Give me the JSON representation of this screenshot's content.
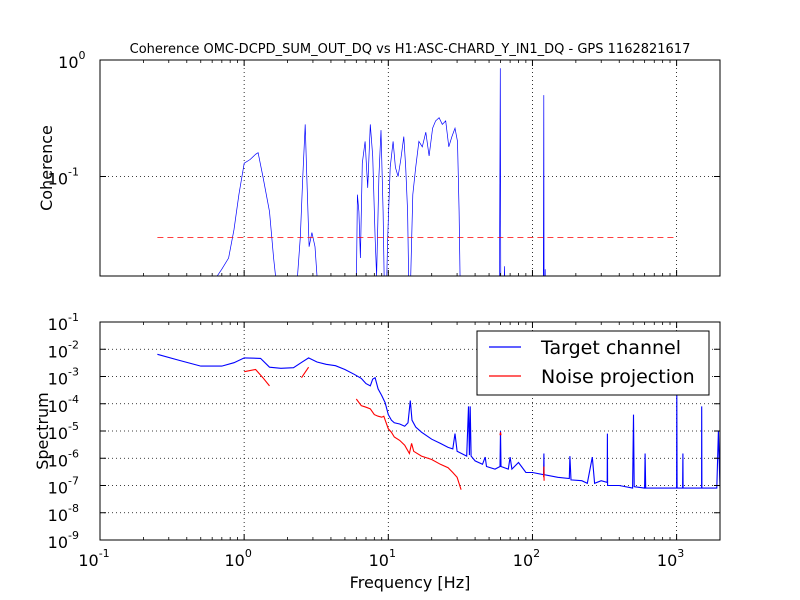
{
  "colors": {
    "target": "#0000ff",
    "projection": "#ff0000",
    "threshold": "#ff0000",
    "grid": "#000000"
  },
  "chart_data": [
    {
      "type": "line",
      "title": "Coherence OMC-DCPD_SUM_OUT_DQ vs H1:ASC-CHARD_Y_IN1_DQ - GPS 1162821617",
      "xscale": "log",
      "yscale": "log",
      "xlim": [
        0.1,
        2000
      ],
      "ylim": [
        0.014,
        1
      ],
      "ylabel": "Coherence",
      "xlabel": "",
      "grid": true,
      "yticks": [
        {
          "value": 0.1,
          "mant": "10",
          "exp": "-1"
        },
        {
          "value": 1,
          "mant": "10",
          "exp": "0"
        }
      ],
      "series": [
        {
          "values_xy": [
            [
              0.6,
              0.01
            ],
            [
              0.65,
              0.014
            ],
            [
              0.7,
              0.016
            ],
            [
              0.78,
              0.02
            ],
            [
              0.85,
              0.035
            ],
            [
              0.92,
              0.07
            ],
            [
              1.0,
              0.13
            ],
            [
              1.1,
              0.14
            ],
            [
              1.2,
              0.155
            ],
            [
              1.25,
              0.16
            ],
            [
              1.35,
              0.1
            ],
            [
              1.5,
              0.05
            ],
            [
              1.6,
              0.02
            ],
            [
              1.7,
              0.01
            ],
            [
              2.3,
              0.01
            ],
            [
              2.45,
              0.03
            ],
            [
              2.55,
              0.1
            ],
            [
              2.65,
              0.28
            ],
            [
              2.72,
              0.1
            ],
            [
              2.82,
              0.025
            ],
            [
              2.95,
              0.033
            ],
            [
              3.1,
              0.025
            ],
            [
              3.2,
              0.014
            ],
            [
              3.3,
              0.01
            ],
            [
              6.0,
              0.01
            ],
            [
              6.1,
              0.07
            ],
            [
              6.25,
              0.05
            ],
            [
              6.4,
              0.02
            ],
            [
              6.6,
              0.13
            ],
            [
              6.9,
              0.2
            ],
            [
              7.2,
              0.08
            ],
            [
              7.5,
              0.28
            ],
            [
              7.8,
              0.15
            ],
            [
              8.1,
              0.03
            ],
            [
              8.3,
              0.014
            ],
            [
              8.6,
              0.1
            ],
            [
              8.9,
              0.25
            ],
            [
              9.2,
              0.05
            ],
            [
              9.4,
              0.01
            ],
            [
              9.7,
              0.01
            ],
            [
              9.9,
              0.03
            ],
            [
              10.3,
              0.12
            ],
            [
              10.8,
              0.2
            ],
            [
              11.2,
              0.12
            ],
            [
              11.7,
              0.1
            ],
            [
              12.2,
              0.14
            ],
            [
              12.8,
              0.22
            ],
            [
              13.2,
              0.12
            ],
            [
              13.6,
              0.05
            ],
            [
              13.9,
              0.01
            ],
            [
              14.2,
              0.01
            ],
            [
              14.8,
              0.07
            ],
            [
              15.5,
              0.12
            ],
            [
              16.3,
              0.2
            ],
            [
              17.2,
              0.18
            ],
            [
              18.2,
              0.24
            ],
            [
              19.2,
              0.15
            ],
            [
              20.3,
              0.26
            ],
            [
              21.3,
              0.3
            ],
            [
              22.5,
              0.32
            ],
            [
              23.7,
              0.28
            ],
            [
              25.0,
              0.3
            ],
            [
              26.3,
              0.18
            ],
            [
              27.6,
              0.22
            ],
            [
              29.0,
              0.26
            ],
            [
              30.2,
              0.2
            ],
            [
              31.0,
              0.05
            ],
            [
              31.6,
              0.01
            ],
            [
              59.0,
              0.01
            ],
            [
              59.8,
              0.85
            ],
            [
              60.3,
              0.01
            ],
            [
              63.5,
              0.01
            ],
            [
              64.0,
              0.017
            ],
            [
              64.5,
              0.01
            ],
            [
              119.0,
              0.01
            ],
            [
              119.8,
              0.5
            ],
            [
              120.4,
              0.01
            ],
            [
              122.0,
              0.01
            ],
            [
              122.5,
              0.016
            ],
            [
              123.0,
              0.01
            ]
          ]
        },
        {
          "style": "dashed",
          "values_xy": [
            [
              0.25,
              0.03
            ],
            [
              1000,
              0.03
            ]
          ]
        }
      ]
    },
    {
      "type": "line",
      "title": "",
      "xscale": "log",
      "yscale": "log",
      "xlim": [
        0.1,
        2000
      ],
      "ylim": [
        1e-09,
        0.1
      ],
      "xlabel": "Frequency [Hz]",
      "ylabel": "Spectrum",
      "grid": true,
      "legend_position": "top-right",
      "xticks": [
        {
          "value": 0.1,
          "mant": "10",
          "exp": "-1"
        },
        {
          "value": 1,
          "mant": "10",
          "exp": "0"
        },
        {
          "value": 10,
          "mant": "10",
          "exp": "1"
        },
        {
          "value": 100,
          "mant": "10",
          "exp": "2"
        },
        {
          "value": 1000,
          "mant": "10",
          "exp": "3"
        }
      ],
      "yticks": [
        {
          "value": 1e-09,
          "mant": "10",
          "exp": "-9"
        },
        {
          "value": 1e-08,
          "mant": "10",
          "exp": "-8"
        },
        {
          "value": 1e-07,
          "mant": "10",
          "exp": "-7"
        },
        {
          "value": 1e-06,
          "mant": "10",
          "exp": "-6"
        },
        {
          "value": 1e-05,
          "mant": "10",
          "exp": "-5"
        },
        {
          "value": 0.0001,
          "mant": "10",
          "exp": "-4"
        },
        {
          "value": 0.001,
          "mant": "10",
          "exp": "-3"
        },
        {
          "value": 0.01,
          "mant": "10",
          "exp": "-2"
        },
        {
          "value": 0.1,
          "mant": "10",
          "exp": "-1"
        }
      ],
      "series": [
        {
          "name": "Target channel",
          "values_xy": [
            [
              0.25,
              0.0065
            ],
            [
              0.35,
              0.004
            ],
            [
              0.5,
              0.0024
            ],
            [
              0.7,
              0.0024
            ],
            [
              0.85,
              0.0032
            ],
            [
              1.0,
              0.0048
            ],
            [
              1.3,
              0.0046
            ],
            [
              1.5,
              0.0022
            ],
            [
              1.8,
              0.002
            ],
            [
              2.2,
              0.0021
            ],
            [
              2.5,
              0.0033
            ],
            [
              2.8,
              0.0048
            ],
            [
              3.2,
              0.0034
            ],
            [
              3.7,
              0.0028
            ],
            [
              4.3,
              0.0025
            ],
            [
              5.0,
              0.0018
            ],
            [
              5.8,
              0.0012
            ],
            [
              6.5,
              0.00085
            ],
            [
              7.0,
              0.00055
            ],
            [
              7.5,
              0.00045
            ],
            [
              7.8,
              0.0008
            ],
            [
              8.1,
              0.0009
            ],
            [
              8.5,
              0.00035
            ],
            [
              9.0,
              0.0002
            ],
            [
              9.5,
              0.00011
            ],
            [
              10.0,
              4e-05
            ],
            [
              10.5,
              2.5e-05
            ],
            [
              11.0,
              2e-05
            ],
            [
              12.0,
              1.8e-05
            ],
            [
              13.0,
              1.5e-05
            ],
            [
              13.7,
              2e-05
            ],
            [
              14.2,
              0.00013
            ],
            [
              14.6,
              2.5e-05
            ],
            [
              15.5,
              1.4e-05
            ],
            [
              17.0,
              9e-06
            ],
            [
              20.0,
              5e-06
            ],
            [
              23.0,
              3.5e-06
            ],
            [
              26.0,
              2.5e-06
            ],
            [
              28.0,
              2.2e-06
            ],
            [
              29.0,
              8e-06
            ],
            [
              30.0,
              1.8e-06
            ],
            [
              33.0,
              1.4e-06
            ],
            [
              35.0,
              1.2e-06
            ],
            [
              36.0,
              8e-05
            ],
            [
              36.5,
              1.3e-06
            ],
            [
              37.0,
              8e-05
            ],
            [
              37.5,
              1.2e-06
            ],
            [
              40.0,
              8e-07
            ],
            [
              45.0,
              6e-07
            ],
            [
              47.0,
              1.1e-06
            ],
            [
              48.0,
              5e-07
            ],
            [
              55.0,
              4e-07
            ],
            [
              59.5,
              5e-07
            ],
            [
              60.0,
              1e-05
            ],
            [
              60.5,
              5e-07
            ],
            [
              68.0,
              4e-07
            ],
            [
              70.0,
              1.1e-06
            ],
            [
              72.0,
              4e-07
            ],
            [
              80.0,
              7e-07
            ],
            [
              90.0,
              3e-07
            ],
            [
              100.0,
              3e-07
            ],
            [
              119.5,
              2.5e-07
            ],
            [
              120.0,
              1.5e-06
            ],
            [
              120.5,
              2.5e-07
            ],
            [
              150.0,
              2e-07
            ],
            [
              180.0,
              1.8e-07
            ],
            [
              182.0,
              1.2e-06
            ],
            [
              185.0,
              1.6e-07
            ],
            [
              220.0,
              1.5e-07
            ],
            [
              240.0,
              1.2e-07
            ],
            [
              260.0,
              1.1e-06
            ],
            [
              270.0,
              1.2e-07
            ],
            [
              300.0,
              1.5e-07
            ],
            [
              330.0,
              1.3e-07
            ],
            [
              331.0,
              8e-06
            ],
            [
              332.0,
              1e-07
            ],
            [
              400.0,
              1e-07
            ],
            [
              495.0,
              8e-08
            ],
            [
              502.0,
              4e-05
            ],
            [
              508.0,
              9e-08
            ],
            [
              600.0,
              8e-08
            ],
            [
              605.0,
              1.5e-06
            ],
            [
              610.0,
              8e-08
            ],
            [
              800.0,
              8e-08
            ],
            [
              1000.0,
              8e-08
            ],
            [
              1003.0,
              0.0003
            ],
            [
              1008.0,
              8e-08
            ],
            [
              1100.0,
              8e-08
            ],
            [
              1105.0,
              1.5e-06
            ],
            [
              1110.0,
              8e-08
            ],
            [
              1300.0,
              8e-08
            ],
            [
              1490.0,
              8e-08
            ],
            [
              1494.0,
              8e-05
            ],
            [
              1498.0,
              8e-08
            ],
            [
              1600.0,
              8e-08
            ],
            [
              1900.0,
              8e-08
            ],
            [
              1950.0,
              1e-05
            ],
            [
              2000.0,
              8e-08
            ]
          ]
        },
        {
          "name": "Noise projection",
          "values_xy": [
            [
              1.0,
              0.0015
            ],
            [
              1.2,
              0.0018
            ],
            [
              1.35,
              0.0009
            ],
            [
              1.5,
              0.00045
            ],
            [
              2.5,
              0.0009
            ],
            [
              2.8,
              0.0022
            ],
            [
              6.0,
              0.00015
            ],
            [
              6.5,
              8.5e-05
            ],
            [
              7.0,
              7.5e-05
            ],
            [
              7.5,
              6.5e-05
            ],
            [
              8.0,
              4e-05
            ],
            [
              8.5,
              3.5e-05
            ],
            [
              9.0,
              3.2e-05
            ],
            [
              9.3,
              3.5e-05
            ],
            [
              10.0,
              1.2e-05
            ],
            [
              10.5,
              9e-06
            ],
            [
              11.0,
              6e-06
            ],
            [
              12.0,
              4.5e-06
            ],
            [
              13.0,
              3e-06
            ],
            [
              14.0,
              1.5e-06
            ],
            [
              14.5,
              3.5e-06
            ],
            [
              15.0,
              1.8e-06
            ],
            [
              17.0,
              1.2e-06
            ],
            [
              20.0,
              9e-07
            ],
            [
              23.0,
              6e-07
            ],
            [
              26.0,
              4.5e-07
            ],
            [
              28.0,
              3e-07
            ],
            [
              30.0,
              2e-07
            ],
            [
              32.0,
              7e-08
            ],
            [
              59.5,
              7e-06
            ],
            [
              60.0,
              9e-06
            ],
            [
              60.5,
              7e-06
            ],
            [
              119.5,
              2e-07
            ],
            [
              120.0,
              5e-07
            ],
            [
              120.5,
              1.5e-07
            ]
          ]
        }
      ]
    }
  ]
}
